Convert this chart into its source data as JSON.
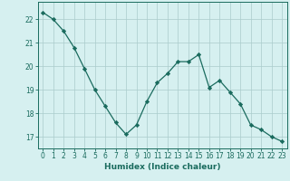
{
  "x": [
    0,
    1,
    2,
    3,
    4,
    5,
    6,
    7,
    8,
    9,
    10,
    11,
    12,
    13,
    14,
    15,
    16,
    17,
    18,
    19,
    20,
    21,
    22,
    23
  ],
  "y": [
    22.3,
    22.0,
    21.5,
    20.8,
    19.9,
    19.0,
    18.3,
    17.6,
    17.1,
    17.5,
    18.5,
    19.3,
    19.7,
    20.2,
    20.2,
    20.5,
    19.1,
    19.4,
    18.9,
    18.4,
    17.5,
    17.3,
    17.0,
    16.8
  ],
  "line_color": "#1a6b5e",
  "marker": "D",
  "marker_size": 2.2,
  "bg_color": "#d6f0f0",
  "grid_color": "#aacccc",
  "xlabel": "Humidex (Indice chaleur)",
  "xlim": [
    -0.5,
    23.5
  ],
  "ylim": [
    16.5,
    22.75
  ],
  "yticks": [
    17,
    18,
    19,
    20,
    21,
    22
  ],
  "xticks": [
    0,
    1,
    2,
    3,
    4,
    5,
    6,
    7,
    8,
    9,
    10,
    11,
    12,
    13,
    14,
    15,
    16,
    17,
    18,
    19,
    20,
    21,
    22,
    23
  ],
  "tick_fontsize": 5.5,
  "xlabel_fontsize": 6.5
}
